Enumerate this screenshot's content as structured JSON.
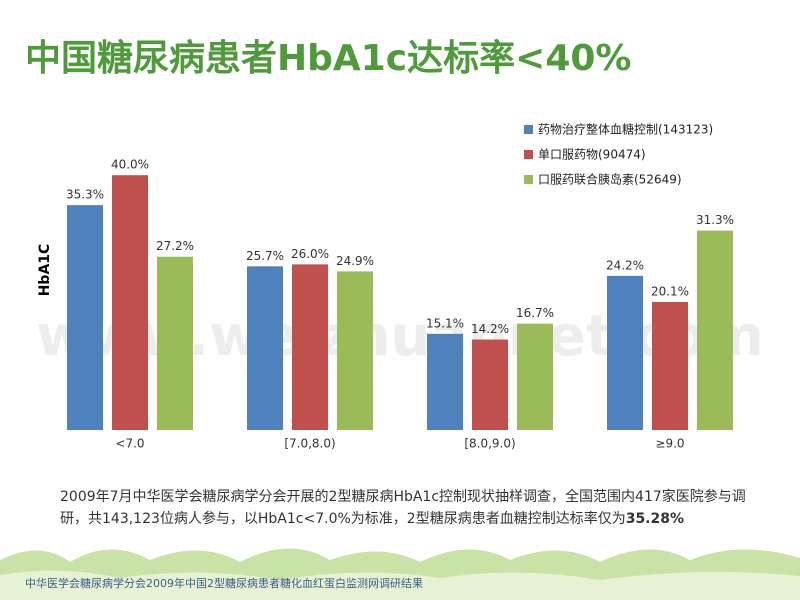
{
  "title": "中国糖尿病患者HbA1c达标率<40%",
  "watermark": "www.weizhuannet.com",
  "paragraph": {
    "text": "2009年7月中华医学会糖尿病学分会开展的2型糖尿病HbA1c控制现状抽样调查，全国范围内417家医院参与调研，共143,123位病人参与，以HbA1c<7.0%为标准，2型糖尿病患者血糖控制达标率仅为",
    "emphasis": "35.28%"
  },
  "footer": "中华医学会糖尿病学分会2009年中国2型糖尿病患者糖化血红蛋白监测网调研结果",
  "chart_data": {
    "type": "bar",
    "y_label": "HbA1C",
    "categories": [
      "<7.0",
      "[7.0,8.0)",
      "[8.0,9.0)",
      "≥9.0"
    ],
    "series": [
      {
        "name": "药物治疗整体血糖控制(143123)",
        "color": "#4f81bd",
        "values": [
          35.3,
          25.7,
          15.1,
          24.2
        ],
        "value_labels": [
          "35.3%",
          "25.7%",
          "15.1%",
          "24.2%"
        ]
      },
      {
        "name": "单口服药物(90474)",
        "color": "#c0504d",
        "values": [
          40.0,
          26.0,
          14.2,
          20.1
        ],
        "value_labels": [
          "40.0%",
          "26.0%",
          "14.2%",
          "20.1%"
        ]
      },
      {
        "name": "口服药联合胰岛素(52649)",
        "color": "#9bbb59",
        "values": [
          27.2,
          24.9,
          16.7,
          31.3
        ],
        "value_labels": [
          "27.2%",
          "24.9%",
          "16.7%",
          "31.3%"
        ]
      }
    ],
    "legend": "top-right"
  }
}
